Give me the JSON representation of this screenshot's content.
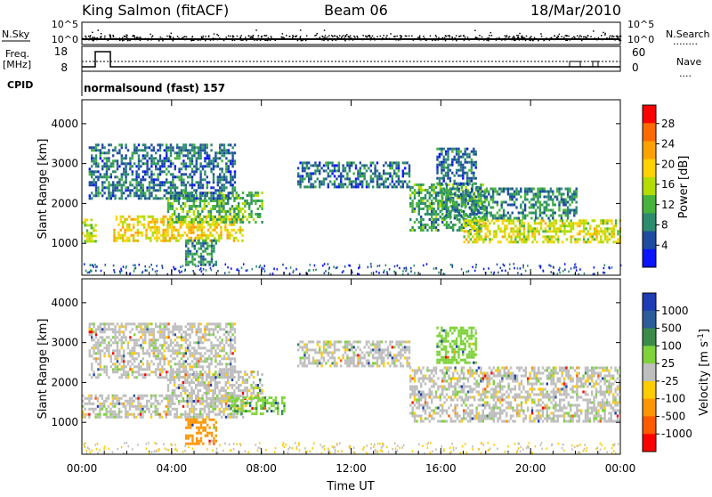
{
  "header": {
    "site": "King Salmon (fitACF)",
    "beam": "Beam 06",
    "date": "18/Mar/2010"
  },
  "top_panels": {
    "nsky_label": "N.Sky",
    "nsearch_label": "N.Search",
    "nsearch_dots": "........",
    "freq_label": "Freq.",
    "freq_unit": "[MHz]",
    "nave_label": "Nave",
    "nave_dots": "....",
    "cpid_label": "CPID",
    "cpid_value": "normalsound (fast) 157",
    "left_ticks_nsky": [
      "10^5",
      "10^0"
    ],
    "right_ticks_nsky": [
      "10^5",
      "10^0"
    ],
    "left_ticks_freq": [
      "18",
      "8"
    ],
    "right_ticks_nave": [
      "60",
      "0"
    ]
  },
  "power_colorbar": {
    "title": "Power [dB]",
    "ticks": [
      "28",
      "24",
      "20",
      "16",
      "12",
      "8",
      "4"
    ],
    "colors": [
      "#ff0000",
      "#ff6a00",
      "#ffa200",
      "#ffd200",
      "#b4dc00",
      "#46b43c",
      "#2d8c6e",
      "#1e4ca0",
      "#0a14ff"
    ]
  },
  "velocity_colorbar": {
    "title": "Velocity [m s",
    "title_sup": "-1",
    "title_end": "]",
    "ticks": [
      "1000",
      "500",
      "100",
      "25",
      "-25",
      "-100",
      "-500",
      "-1000"
    ],
    "colors": [
      "#1e3cb4",
      "#2c5c9a",
      "#3a8a4a",
      "#7ed23a",
      "#bebebe",
      "#ffcc00",
      "#ff9600",
      "#ff5a00",
      "#ff0000"
    ]
  },
  "chart_data": [
    {
      "type": "heatmap",
      "title": "",
      "ylabel": "Slant Range [km]",
      "xlabel": "",
      "colorbar": "Power [dB]",
      "ylim": [
        200,
        4600
      ],
      "yticks": [
        "1000",
        "2000",
        "3000",
        "4000"
      ],
      "xlim_hours": [
        0,
        24
      ],
      "bands": [
        {
          "t0": 0.0,
          "t1": 0.6,
          "r0": 1080,
          "r1": 1620,
          "level": 16
        },
        {
          "t0": 1.4,
          "t1": 7.2,
          "r0": 1050,
          "r1": 1700,
          "level": 20
        },
        {
          "t0": 3.8,
          "t1": 8.0,
          "r0": 1500,
          "r1": 2300,
          "level": 12
        },
        {
          "t0": 4.6,
          "t1": 6.0,
          "r0": 450,
          "r1": 1100,
          "level": 8
        },
        {
          "t0": 0.3,
          "t1": 6.8,
          "r0": 2100,
          "r1": 3500,
          "level": 6
        },
        {
          "t0": 9.6,
          "t1": 14.6,
          "r0": 2400,
          "r1": 3050,
          "level": 6
        },
        {
          "t0": 14.6,
          "t1": 18.0,
          "r0": 1300,
          "r1": 2500,
          "level": 10
        },
        {
          "t0": 17.0,
          "t1": 24.0,
          "r0": 1050,
          "r1": 1600,
          "level": 18
        },
        {
          "t0": 16.0,
          "t1": 22.0,
          "r0": 1600,
          "r1": 2400,
          "level": 8
        },
        {
          "t0": 15.8,
          "t1": 17.6,
          "r0": 2500,
          "r1": 3400,
          "level": 6
        }
      ]
    },
    {
      "type": "heatmap",
      "title": "",
      "ylabel": "Slant Range [km]",
      "xlabel": "Time UT",
      "colorbar": "Velocity [m s-1]",
      "ylim": [
        200,
        4600
      ],
      "yticks": [
        "1000",
        "2000",
        "3000",
        "4000"
      ],
      "xticks": [
        "00:00",
        "04:00",
        "08:00",
        "12:00",
        "16:00",
        "20:00",
        "00:00"
      ],
      "xlim_hours": [
        0,
        24
      ],
      "bands": [
        {
          "t0": 0.0,
          "t1": 7.2,
          "r0": 1100,
          "r1": 1700,
          "vel": 0
        },
        {
          "t0": 3.8,
          "t1": 8.0,
          "r0": 1500,
          "r1": 2300,
          "vel": 0
        },
        {
          "t0": 4.6,
          "t1": 6.0,
          "r0": 450,
          "r1": 1100,
          "vel": -200
        },
        {
          "t0": 6.5,
          "t1": 9.0,
          "r0": 1200,
          "r1": 1650,
          "vel": 80
        },
        {
          "t0": 0.3,
          "t1": 6.8,
          "r0": 2100,
          "r1": 3500,
          "vel": 0
        },
        {
          "t0": 9.6,
          "t1": 14.6,
          "r0": 2400,
          "r1": 3050,
          "vel": 0
        },
        {
          "t0": 14.6,
          "t1": 24.0,
          "r0": 1050,
          "r1": 2400,
          "vel": 0
        },
        {
          "t0": 15.8,
          "t1": 17.6,
          "r0": 2500,
          "r1": 3400,
          "vel": 60
        }
      ]
    }
  ]
}
